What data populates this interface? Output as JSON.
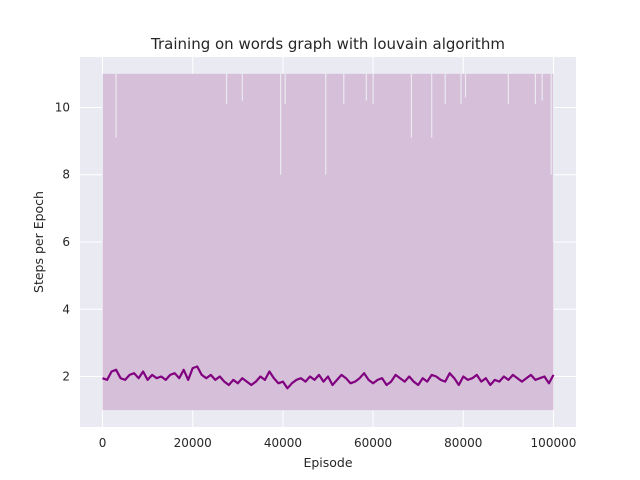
{
  "chart_data": {
    "type": "line",
    "title": "Training on words graph with louvain algorithm",
    "xlabel": "Episode",
    "ylabel": "Steps per Epoch",
    "xlim": [
      -5000,
      105000
    ],
    "ylim": [
      0.5,
      11.5
    ],
    "xticks": [
      0,
      20000,
      40000,
      60000,
      80000,
      100000
    ],
    "yticks": [
      2,
      4,
      6,
      8,
      10
    ],
    "grid": true,
    "legend": "none",
    "series": [
      {
        "kind": "raw-steps-band",
        "color": "#d6bfd8",
        "x_range": [
          0,
          100000
        ],
        "y_min": 1,
        "y_max": 11,
        "dips": [
          {
            "x": 3000,
            "y": 9.1
          },
          {
            "x": 27500,
            "y": 10.1
          },
          {
            "x": 31000,
            "y": 10.2
          },
          {
            "x": 39500,
            "y": 8.0
          },
          {
            "x": 40500,
            "y": 10.1
          },
          {
            "x": 49500,
            "y": 8.0
          },
          {
            "x": 53500,
            "y": 10.1
          },
          {
            "x": 58500,
            "y": 10.2
          },
          {
            "x": 60000,
            "y": 10.1
          },
          {
            "x": 68500,
            "y": 9.1
          },
          {
            "x": 73000,
            "y": 9.1
          },
          {
            "x": 76000,
            "y": 10.1
          },
          {
            "x": 79500,
            "y": 10.1
          },
          {
            "x": 80500,
            "y": 10.3
          },
          {
            "x": 90000,
            "y": 10.1
          },
          {
            "x": 96000,
            "y": 10.1
          },
          {
            "x": 97500,
            "y": 10.2
          },
          {
            "x": 99500,
            "y": 8.0
          },
          {
            "x": 100000,
            "y": 6.0
          }
        ]
      },
      {
        "kind": "moving-average",
        "color": "#800080",
        "x": [
          0,
          1000,
          2000,
          3000,
          4000,
          5000,
          6000,
          7000,
          8000,
          9000,
          10000,
          11000,
          12000,
          13000,
          14000,
          15000,
          16000,
          17000,
          18000,
          19000,
          20000,
          21000,
          22000,
          23000,
          24000,
          25000,
          26000,
          27000,
          28000,
          29000,
          30000,
          31000,
          32000,
          33000,
          34000,
          35000,
          36000,
          37000,
          38000,
          39000,
          40000,
          41000,
          42000,
          43000,
          44000,
          45000,
          46000,
          47000,
          48000,
          49000,
          50000,
          51000,
          52000,
          53000,
          54000,
          55000,
          56000,
          57000,
          58000,
          59000,
          60000,
          61000,
          62000,
          63000,
          64000,
          65000,
          66000,
          67000,
          68000,
          69000,
          70000,
          71000,
          72000,
          73000,
          74000,
          75000,
          76000,
          77000,
          78000,
          79000,
          80000,
          81000,
          82000,
          83000,
          84000,
          85000,
          86000,
          87000,
          88000,
          89000,
          90000,
          91000,
          92000,
          93000,
          94000,
          95000,
          96000,
          97000,
          98000,
          99000,
          100000
        ],
        "values": [
          1.95,
          1.9,
          2.15,
          2.2,
          1.95,
          1.9,
          2.05,
          2.1,
          1.95,
          2.15,
          1.9,
          2.05,
          1.95,
          2.0,
          1.9,
          2.05,
          2.1,
          1.95,
          2.2,
          1.9,
          2.25,
          2.3,
          2.05,
          1.95,
          2.05,
          1.9,
          2.0,
          1.85,
          1.75,
          1.9,
          1.8,
          1.95,
          1.85,
          1.75,
          1.85,
          2.0,
          1.9,
          2.15,
          1.95,
          1.8,
          1.85,
          1.65,
          1.8,
          1.9,
          1.95,
          1.85,
          2.0,
          1.9,
          2.05,
          1.85,
          2.0,
          1.75,
          1.9,
          2.05,
          1.95,
          1.8,
          1.85,
          1.95,
          2.1,
          1.9,
          1.8,
          1.9,
          1.95,
          1.75,
          1.85,
          2.05,
          1.95,
          1.85,
          2.0,
          1.85,
          1.75,
          1.95,
          1.85,
          2.05,
          2.0,
          1.9,
          1.85,
          2.1,
          1.95,
          1.75,
          2.0,
          1.9,
          1.95,
          2.05,
          1.85,
          1.95,
          1.75,
          1.9,
          1.85,
          2.0,
          1.9,
          2.05,
          1.95,
          1.85,
          1.95,
          2.05,
          1.9,
          1.95,
          2.0,
          1.8,
          2.05
        ]
      }
    ]
  }
}
